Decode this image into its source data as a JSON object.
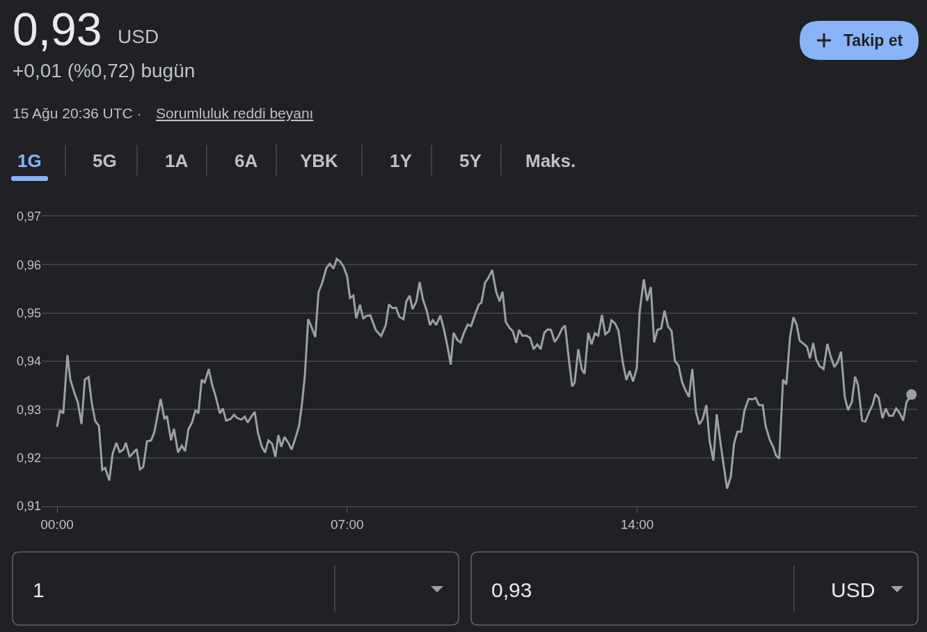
{
  "chart_data": {
    "type": "line",
    "title": "0,93",
    "annotations": [
      "USD",
      "+0,01 (%0,72) bugün",
      "15 Ağu 20:36 UTC ·",
      "Sorumluluk reddi beyanı",
      "Takip et",
      "1G",
      "5G",
      "1A",
      "6A",
      "YBK",
      "1Y",
      "5Y",
      "Maks.",
      "1",
      "0,93",
      "USD"
    ],
    "x": [
      0,
      0.07,
      0.15,
      0.25,
      0.32,
      0.42,
      0.5,
      0.59,
      0.67,
      0.76,
      0.84,
      0.92,
      1.01,
      1.09,
      1.16,
      1.26,
      1.34,
      1.43,
      1.51,
      1.6,
      1.66,
      1.75,
      1.92,
      2.0,
      2.08,
      2.17,
      2.27,
      2.35,
      2.5,
      2.59,
      2.65,
      2.75,
      2.82,
      2.92,
      3.01,
      3.09,
      3.17,
      3.26,
      3.34,
      3.41,
      3.49,
      3.56,
      3.66,
      3.74,
      3.83,
      3.93,
      4.0,
      4.08,
      4.18,
      4.27,
      4.35,
      4.45,
      4.53,
      4.6,
      4.7,
      4.77,
      4.85,
      4.94,
      5.02,
      5.1,
      5.19,
      5.27,
      5.34,
      5.41,
      5.49,
      5.58,
      5.66,
      5.76,
      5.84,
      5.91,
      5.98,
      6.06,
      6.14,
      6.23,
      6.31,
      6.4,
      6.5,
      6.58,
      6.67,
      6.75,
      6.84,
      6.92,
      7.0,
      7.07,
      7.15,
      7.22,
      7.31,
      7.39,
      7.46,
      7.56,
      7.69,
      7.82,
      7.93,
      8.01,
      8.09,
      8.18,
      8.26,
      8.36,
      8.43,
      8.51,
      8.58,
      8.67,
      8.75,
      8.83,
      8.92,
      9.0,
      9.07,
      9.15,
      9.25,
      9.34,
      9.42,
      9.5,
      9.57,
      9.66,
      9.74,
      9.82,
      9.91,
      9.99,
      10.08,
      10.18,
      10.24,
      10.33,
      10.41,
      10.5,
      10.6,
      10.68,
      10.75,
      10.83,
      10.92,
      11.0,
      11.08,
      11.15,
      11.23,
      11.33,
      11.42,
      11.5,
      11.59,
      11.67,
      11.76,
      11.84,
      11.92,
      12.01,
      12.09,
      12.19,
      12.26,
      12.34,
      12.43,
      12.49,
      12.58,
      12.66,
      12.73,
      12.82,
      12.9,
      12.98,
      13.06,
      13.15,
      13.23,
      13.32,
      13.38,
      13.47,
      13.55,
      13.65,
      13.74,
      13.82,
      13.9,
      13.99,
      14.06,
      14.16,
      14.24,
      14.33,
      14.41,
      14.49,
      14.58,
      14.66,
      14.75,
      14.83,
      14.91,
      15.0,
      15.08,
      15.16,
      15.25,
      15.33,
      15.42,
      15.5,
      15.58,
      15.67,
      15.75,
      15.84,
      15.92,
      16.02,
      16.17,
      16.26,
      16.34,
      16.42,
      16.51,
      16.59,
      16.69,
      16.78,
      16.86,
      16.94,
      17.03,
      17.1,
      17.2,
      17.28,
      17.35,
      17.43,
      17.52,
      17.6,
      17.69,
      17.77,
      17.85,
      17.92,
      18.02,
      18.1,
      18.17,
      18.25,
      18.32,
      18.4,
      18.5,
      18.59,
      18.67,
      18.76,
      18.84,
      18.92,
      19.01,
      19.09,
      19.18,
      19.26,
      19.33,
      19.43,
      19.51,
      19.6,
      19.68,
      19.75,
      19.83,
      19.92,
      20.0,
      20.08,
      20.17,
      20.25,
      20.34,
      20.42,
      20.5,
      20.62
    ],
    "series": [
      {
        "color": "#9aa0a6",
        "values": [
          0.9264,
          0.9298,
          0.9292,
          0.9413,
          0.9362,
          0.9334,
          0.9315,
          0.927,
          0.9362,
          0.9367,
          0.9312,
          0.9276,
          0.9266,
          0.9175,
          0.9179,
          0.9153,
          0.9208,
          0.9231,
          0.9212,
          0.9217,
          0.9231,
          0.9202,
          0.9218,
          0.9176,
          0.9181,
          0.9234,
          0.9236,
          0.9254,
          0.9322,
          0.928,
          0.9287,
          0.9236,
          0.926,
          0.9211,
          0.9225,
          0.9214,
          0.9259,
          0.9274,
          0.9299,
          0.9292,
          0.9362,
          0.9355,
          0.9384,
          0.9352,
          0.9326,
          0.9292,
          0.9302,
          0.9277,
          0.928,
          0.9289,
          0.9282,
          0.9279,
          0.9285,
          0.9273,
          0.9287,
          0.9295,
          0.9251,
          0.9223,
          0.9211,
          0.9236,
          0.9229,
          0.9202,
          0.9247,
          0.9223,
          0.9243,
          0.9231,
          0.9217,
          0.9243,
          0.9266,
          0.9312,
          0.937,
          0.9487,
          0.9471,
          0.945,
          0.9543,
          0.9563,
          0.9593,
          0.9602,
          0.9592,
          0.9612,
          0.9606,
          0.9595,
          0.9576,
          0.9531,
          0.9536,
          0.9489,
          0.9517,
          0.9488,
          0.9494,
          0.9495,
          0.9465,
          0.9452,
          0.9474,
          0.9518,
          0.951,
          0.9511,
          0.9492,
          0.9487,
          0.9524,
          0.9536,
          0.9508,
          0.9524,
          0.9564,
          0.9528,
          0.9505,
          0.9475,
          0.9485,
          0.9475,
          0.9495,
          0.9465,
          0.9432,
          0.9393,
          0.9459,
          0.9444,
          0.9439,
          0.9459,
          0.9476,
          0.9473,
          0.9495,
          0.9518,
          0.9521,
          0.9563,
          0.9573,
          0.9589,
          0.9543,
          0.9524,
          0.9544,
          0.9481,
          0.9469,
          0.9462,
          0.9438,
          0.9465,
          0.9453,
          0.9453,
          0.9448,
          0.9425,
          0.9435,
          0.9425,
          0.9459,
          0.9466,
          0.9465,
          0.944,
          0.945,
          0.9468,
          0.9474,
          0.9413,
          0.9348,
          0.9355,
          0.9425,
          0.9384,
          0.9374,
          0.9459,
          0.9435,
          0.9458,
          0.9453,
          0.9496,
          0.9456,
          0.9462,
          0.9485,
          0.9478,
          0.9463,
          0.9399,
          0.9361,
          0.938,
          0.9358,
          0.9386,
          0.9502,
          0.957,
          0.9525,
          0.9554,
          0.9439,
          0.9465,
          0.9468,
          0.9505,
          0.9471,
          0.9463,
          0.9401,
          0.9391,
          0.9358,
          0.9341,
          0.9326,
          0.9384,
          0.9295,
          0.9269,
          0.928,
          0.9309,
          0.9234,
          0.9194,
          0.929,
          0.9225,
          0.9136,
          0.9161,
          0.923,
          0.9254,
          0.9254,
          0.9298,
          0.9322,
          0.9321,
          0.9324,
          0.9309,
          0.9309,
          0.9266,
          0.9237,
          0.9223,
          0.9205,
          0.9198,
          0.9362,
          0.9352,
          0.945,
          0.9491,
          0.9476,
          0.9443,
          0.9436,
          0.943,
          0.9406,
          0.9438,
          0.9404,
          0.939,
          0.9384,
          0.9436,
          0.941,
          0.9388,
          0.9398,
          0.942,
          0.9326,
          0.9299,
          0.9315,
          0.9368,
          0.9351,
          0.9277,
          0.9275,
          0.9295,
          0.9309,
          0.9332,
          0.9324,
          0.9282,
          0.9302,
          0.9287,
          0.9287,
          0.9302,
          0.9292,
          0.9277,
          0.9315,
          0.9331
        ]
      },
      {
        "type": "scatter",
        "marker": "circle",
        "x": [
          20.62
        ],
        "color": "#9aa0a6",
        "values": [
          0.9331
        ]
      }
    ],
    "marker": "none",
    "line_style": "solid",
    "xlim": [
      -0.37,
      20.76
    ],
    "xticks": [
      {
        "value": 0,
        "label": "00:00"
      },
      {
        "value": 7,
        "label": "07:00"
      },
      {
        "value": 14,
        "label": "14:00"
      }
    ],
    "ylim": [
      0.91,
      0.97
    ],
    "yticks": [
      {
        "value": 0.91,
        "label": "0,91"
      },
      {
        "value": 0.92,
        "label": "0,92"
      },
      {
        "value": 0.93,
        "label": "0,93"
      },
      {
        "value": 0.94,
        "label": "0,94"
      },
      {
        "value": 0.95,
        "label": "0,95"
      },
      {
        "value": 0.96,
        "label": "0,96"
      },
      {
        "value": 0.97,
        "label": "0,97"
      }
    ],
    "grid": "y"
  }
}
